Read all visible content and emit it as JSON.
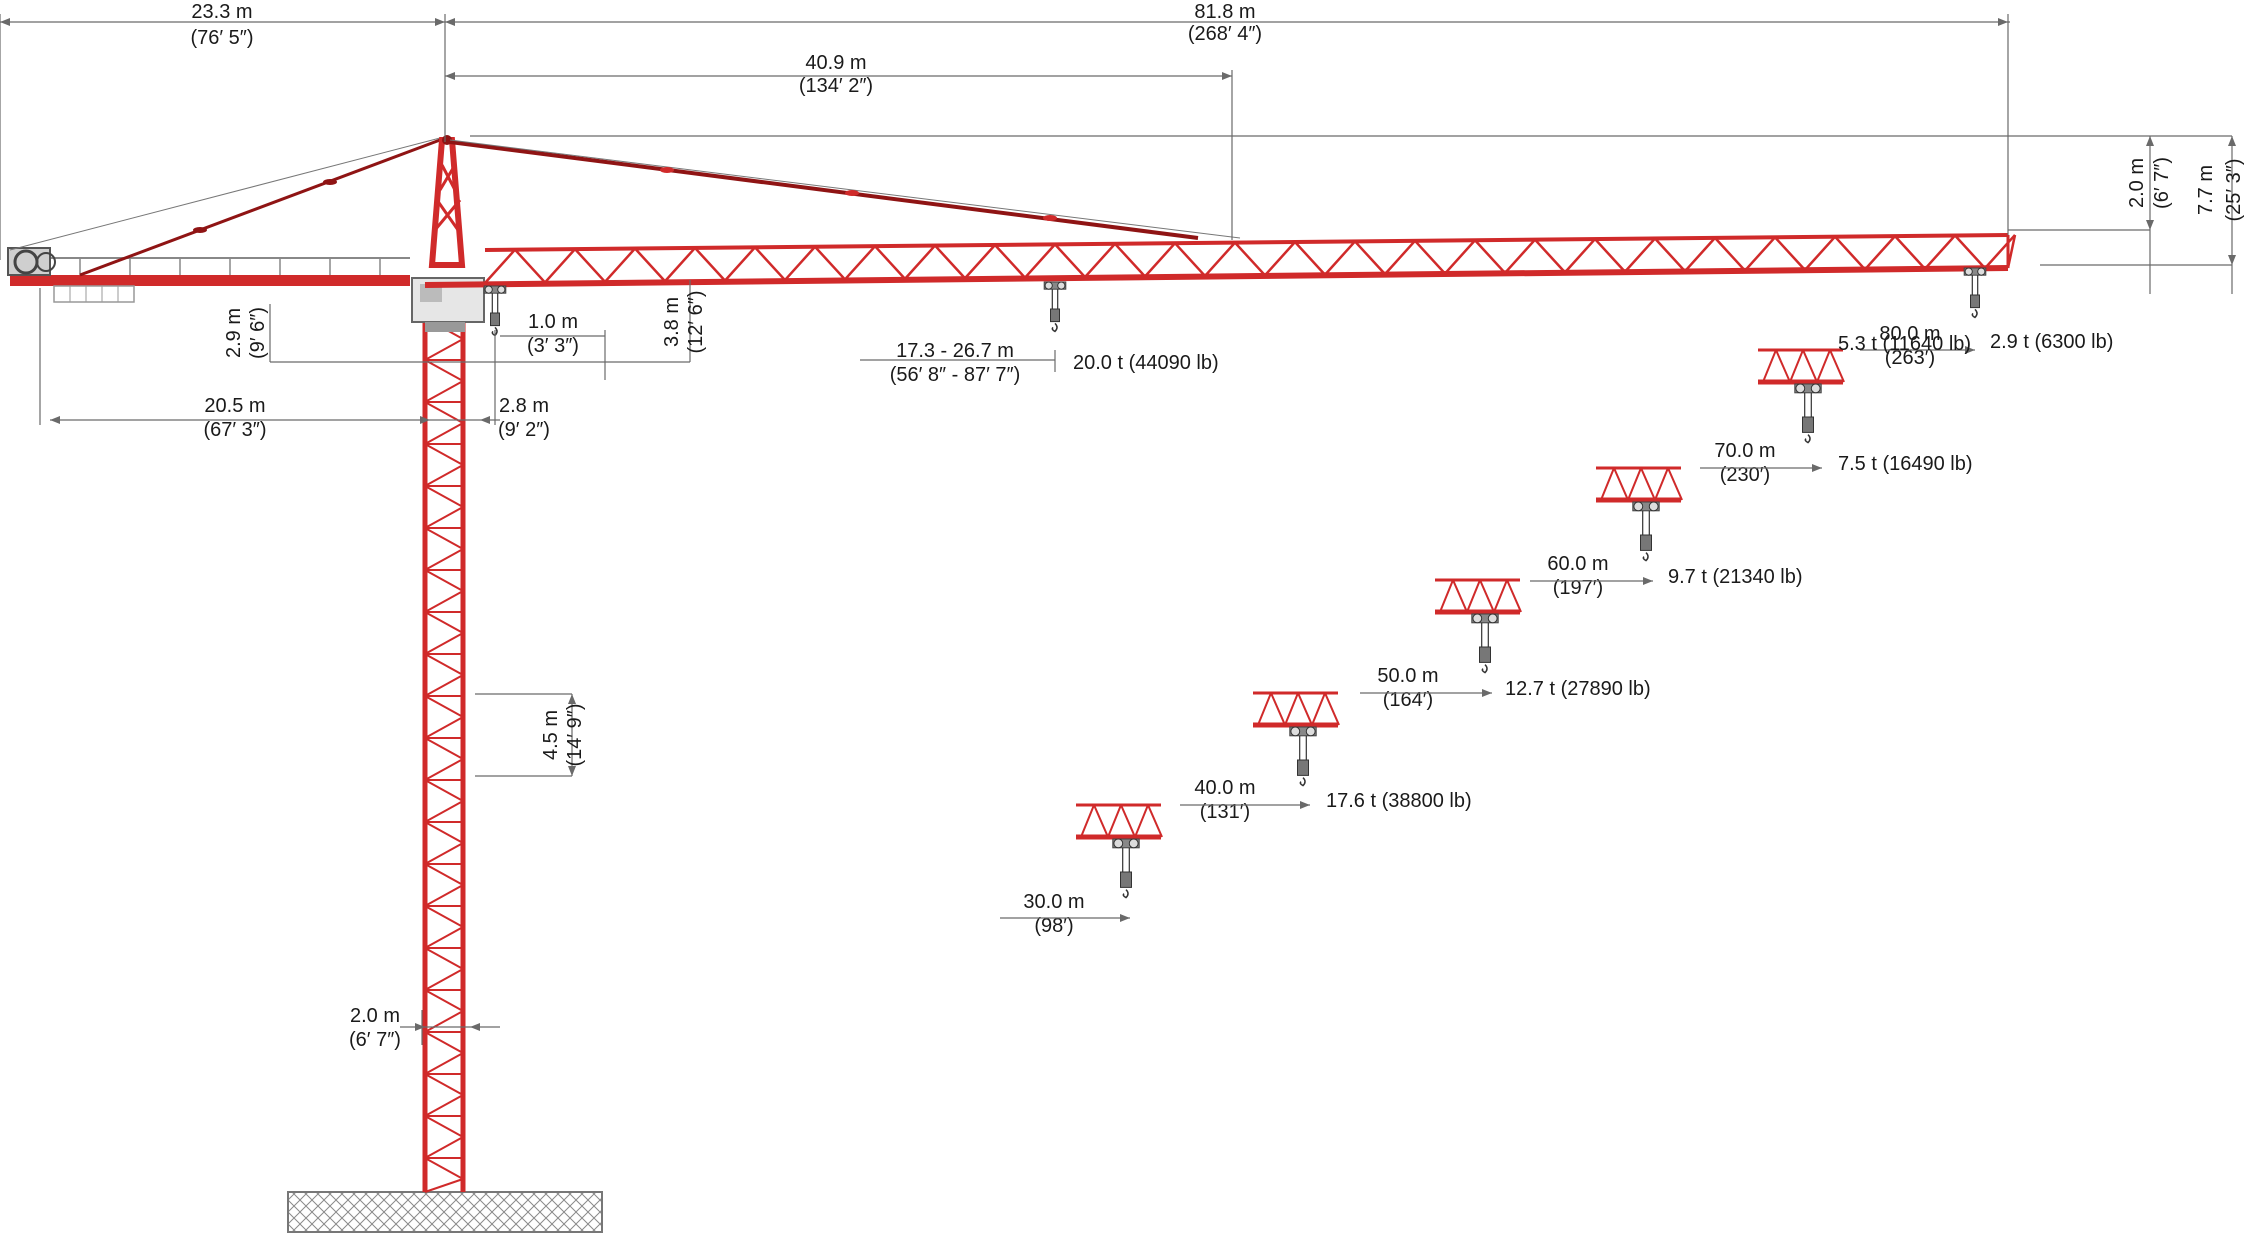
{
  "colors": {
    "crane_red": "#d02a2a",
    "crane_dark_red": "#8f1414",
    "dim_line": "#6a6a6a",
    "grey_part": "#9a9a9a",
    "foundation": "#bdbdbd"
  },
  "dimensions": {
    "counter_jib_length": {
      "metric": "23.3 m",
      "imperial": "(76′ 5″)"
    },
    "jib_length": {
      "metric": "81.8 m",
      "imperial": "(268′ 4″)"
    },
    "tie_bar_distance": {
      "metric": "40.9 m",
      "imperial": "(134′ 2″)"
    },
    "counterweight_radius": {
      "metric": "20.5 m",
      "imperial": "(67′ 3″)"
    },
    "counterjib_drop": {
      "metric": "2.9 m",
      "imperial": "(9′ 6″)"
    },
    "tail_clearance": {
      "metric": "2.8 m",
      "imperial": "(9′ 2″)"
    },
    "min_hook_radius": {
      "metric": "1.0 m",
      "imperial": "(3′ 3″)"
    },
    "jib_head_drop": {
      "metric": "3.8 m",
      "imperial": "(12′ 6″)"
    },
    "mast_section": {
      "metric": "4.5 m",
      "imperial": "(14′ 9″)"
    },
    "mast_width": {
      "metric": "2.0 m",
      "imperial": "(6′ 7″)"
    },
    "jib_depth": {
      "metric": "2.0 m",
      "imperial": "(6′ 7″)"
    },
    "tip_height": {
      "metric": "7.7 m",
      "imperial": "(25′ 3″)"
    },
    "max_load_range": {
      "metric": "17.3 - 26.7 m",
      "imperial": "(56′ 8″ - 87′ 7″)"
    }
  },
  "loads": {
    "max_load": "20.0 t (44090 lb)",
    "tip_load": "2.9 t (6300 lb)"
  },
  "load_points": [
    {
      "radius_m": "80.0 m",
      "radius_ft": "(263′)",
      "load": "5.3 t (11640 lb)"
    },
    {
      "radius_m": "70.0 m",
      "radius_ft": "(230′)",
      "load": "7.5 t (16490 lb)"
    },
    {
      "radius_m": "60.0 m",
      "radius_ft": "(197′)",
      "load": "9.7 t (21340 lb)"
    },
    {
      "radius_m": "50.0 m",
      "radius_ft": "(164′)",
      "load": "12.7 t (27890 lb)"
    },
    {
      "radius_m": "40.0 m",
      "radius_ft": "(131′)",
      "load": "17.6 t (38800 lb)"
    },
    {
      "radius_m": "30.0 m",
      "radius_ft": "(98′)",
      "load": ""
    }
  ]
}
